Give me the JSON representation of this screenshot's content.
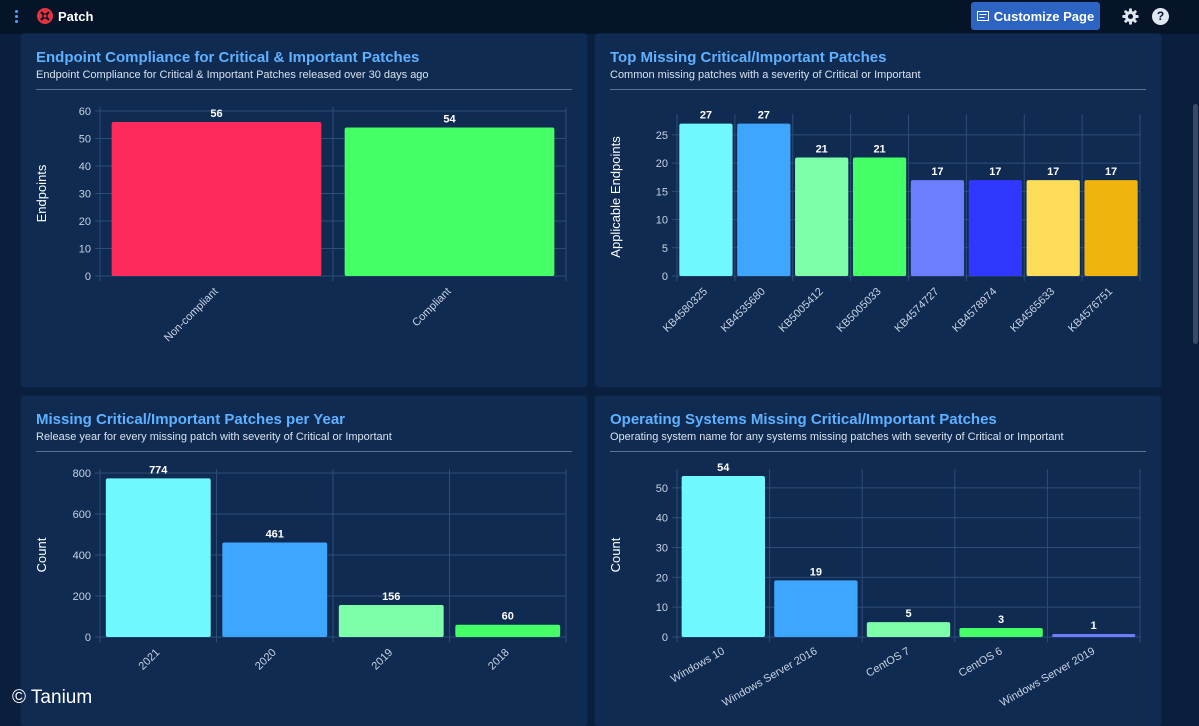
{
  "app": {
    "title": "Patch",
    "customize_label": "Customize Page",
    "help_label": "?"
  },
  "watermark": "© Tanium",
  "panels": [
    {
      "title": "Endpoint Compliance for Critical & Important Patches",
      "subtitle": "Endpoint Compliance for Critical & Important Patches released over 30 days ago"
    },
    {
      "title": "Top Missing Critical/Important Patches",
      "subtitle": "Common missing patches with a severity of Critical or Important"
    },
    {
      "title": "Missing Critical/Important Patches per Year",
      "subtitle": "Release year for every missing patch with severity of Critical or Important"
    },
    {
      "title": "Operating Systems Missing Critical/Important Patches",
      "subtitle": "Operating system name for any systems missing patches with severity of Critical or Important"
    }
  ],
  "chart_data": [
    {
      "type": "bar",
      "title": "Endpoint Compliance for Critical & Important Patches",
      "ylabel": "Endpoints",
      "xlabel": "",
      "categories": [
        "Non-compliant",
        "Compliant"
      ],
      "values": [
        56,
        54
      ],
      "colors": [
        "#ff2a5c",
        "#45ff66"
      ],
      "ylim": [
        0,
        60
      ],
      "yticks": [
        0,
        10,
        20,
        30,
        40,
        50,
        60
      ],
      "grid": true
    },
    {
      "type": "bar",
      "title": "Top Missing Critical/Important Patches",
      "ylabel": "Applicable Endpoints",
      "xlabel": "",
      "categories": [
        "KB4580325",
        "KB4535680",
        "KB5005412",
        "KB5005033",
        "KB4574727",
        "KB4578974",
        "KB4565633",
        "KB4576751"
      ],
      "values": [
        27,
        27,
        21,
        21,
        17,
        17,
        17,
        17
      ],
      "colors": [
        "#70f8ff",
        "#3fa6ff",
        "#7dffaa",
        "#45ff66",
        "#6c7dff",
        "#3038ff",
        "#fddc5a",
        "#f0b40e"
      ],
      "ylim": [
        0,
        28
      ],
      "yticks": [
        0,
        5,
        10,
        15,
        20,
        25
      ],
      "grid": true
    },
    {
      "type": "bar",
      "title": "Missing Critical/Important Patches per Year",
      "ylabel": "Count",
      "xlabel": "",
      "categories": [
        "2021",
        "2020",
        "2019",
        "2018"
      ],
      "values": [
        774,
        461,
        156,
        60
      ],
      "colors": [
        "#70f8ff",
        "#3fa6ff",
        "#7dffaa",
        "#45ff66"
      ],
      "ylim": [
        0,
        800
      ],
      "yticks": [
        0,
        200,
        400,
        600,
        800
      ],
      "grid": true
    },
    {
      "type": "bar",
      "title": "Operating Systems Missing Critical/Important Patches",
      "ylabel": "Count",
      "xlabel": "",
      "categories": [
        "Windows 10",
        "Windows Server 2016",
        "CentOS 7",
        "CentOS 6",
        "Windows Server 2019"
      ],
      "values": [
        54,
        19,
        5,
        3,
        1
      ],
      "colors": [
        "#70f8ff",
        "#3fa6ff",
        "#7dffaa",
        "#45ff66",
        "#6c7dff"
      ],
      "ylim": [
        0,
        55
      ],
      "yticks": [
        0,
        10,
        20,
        30,
        40,
        50
      ],
      "grid": true
    }
  ]
}
